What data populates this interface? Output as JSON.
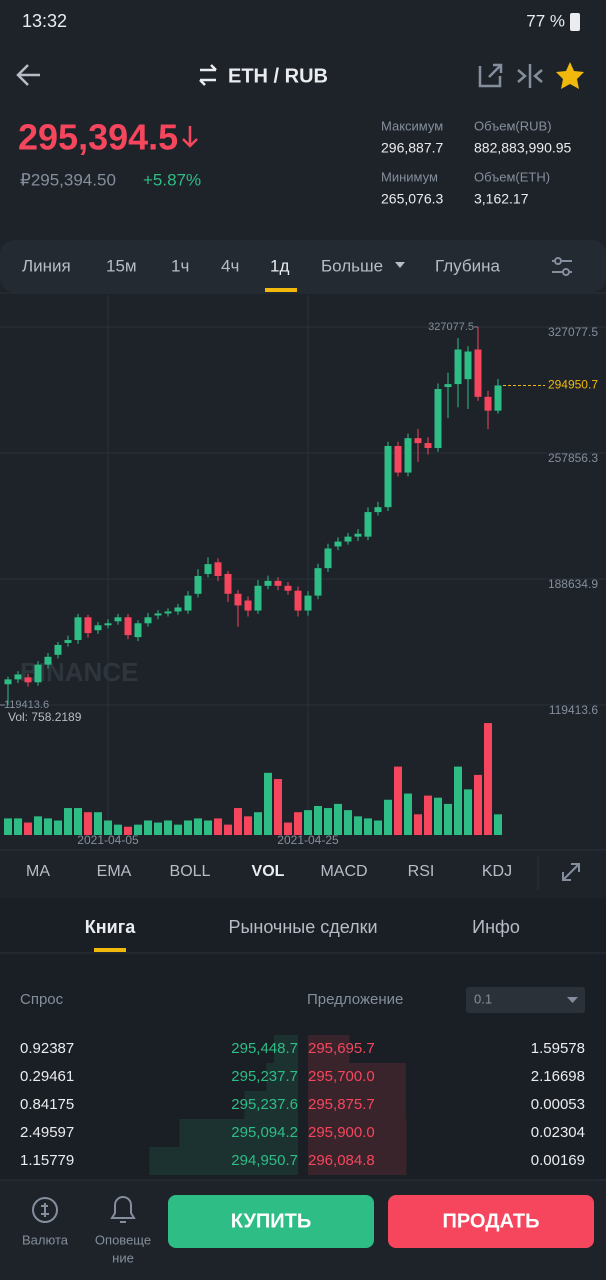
{
  "status_bar": {
    "time": "13:32",
    "battery": "77 %"
  },
  "header": {
    "pair": "ETH / RUB"
  },
  "ticker": {
    "price": "295,394.5",
    "price_rub": "₽295,394.50",
    "change": "+5.87%",
    "high_label": "Максимум",
    "high": "296,887.7",
    "low_label": "Минимум",
    "low": "265,076.3",
    "vol_rub_label": "Объем(RUB)",
    "vol_rub": "882,883,990.95",
    "vol_eth_label": "Объем(ETH)",
    "vol_eth": "3,162.17"
  },
  "timeframes": {
    "items": [
      "Линия",
      "15м",
      "1ч",
      "4ч",
      "1д",
      "Больше",
      "Глубина"
    ],
    "active": 4
  },
  "chart_data": {
    "type": "candlestick",
    "up_color": "#2ebd85",
    "down_color": "#f6465d",
    "grid": true,
    "categories": [
      null,
      null,
      null,
      null,
      null,
      null,
      null,
      null,
      null,
      null,
      "2021-04-05",
      null,
      null,
      null,
      null,
      null,
      null,
      null,
      null,
      null,
      null,
      null,
      null,
      null,
      null,
      null,
      null,
      null,
      null,
      null,
      "2021-04-25",
      null,
      null,
      null,
      null,
      null,
      null,
      null,
      null,
      null,
      null,
      null,
      null,
      null,
      null,
      null,
      null,
      null,
      null,
      null
    ],
    "open": [
      130800,
      133500,
      134600,
      131900,
      141600,
      147000,
      153500,
      155100,
      167600,
      160500,
      163200,
      165400,
      167600,
      156700,
      164300,
      168600,
      169700,
      170800,
      171300,
      180500,
      191400,
      197800,
      191400,
      180500,
      176800,
      171300,
      184900,
      187600,
      184900,
      182200,
      171300,
      179500,
      194600,
      206500,
      209200,
      211900,
      211900,
      225400,
      228100,
      261700,
      247100,
      266000,
      263300,
      260600,
      294100,
      295700,
      298400,
      314700,
      288700,
      281100
    ],
    "high": [
      135000,
      138000,
      136500,
      143500,
      148000,
      154000,
      157500,
      169500,
      169000,
      165000,
      166500,
      169500,
      169500,
      166000,
      170000,
      171500,
      172500,
      175000,
      182000,
      194000,
      200500,
      200000,
      193000,
      182500,
      179000,
      188000,
      190500,
      189500,
      187000,
      184500,
      182000,
      197000,
      208000,
      211500,
      214000,
      216000,
      228000,
      231000,
      264000,
      264000,
      268500,
      271000,
      266500,
      296000,
      302000,
      321000,
      316500,
      327077.5,
      292000,
      298500
    ],
    "low": [
      119413.6,
      131500,
      129500,
      130000,
      139500,
      145000,
      151500,
      153000,
      156500,
      158500,
      161500,
      163500,
      155500,
      154500,
      162500,
      166500,
      168000,
      169000,
      169500,
      178500,
      189500,
      187500,
      176000,
      162500,
      168000,
      169500,
      183000,
      182500,
      180000,
      168000,
      168500,
      177500,
      192500,
      204500,
      207500,
      209500,
      210000,
      223500,
      226000,
      245000,
      245000,
      253000,
      257000,
      258500,
      277000,
      283000,
      282000,
      286500,
      271000,
      279500
    ],
    "close": [
      133500,
      136200,
      131900,
      141600,
      145900,
      152400,
      155100,
      167600,
      158900,
      163200,
      164300,
      167600,
      157800,
      164300,
      167600,
      169700,
      170800,
      173000,
      179500,
      190300,
      196800,
      190300,
      180500,
      174100,
      171300,
      184900,
      187600,
      184900,
      182200,
      171300,
      179500,
      194600,
      205400,
      209200,
      211900,
      213500,
      225400,
      228100,
      261700,
      247100,
      266000,
      263300,
      260600,
      293000,
      295700,
      314700,
      313600,
      288700,
      281100,
      294950.7
    ],
    "volume": [
      608,
      608,
      456,
      684,
      608,
      532,
      988,
      988,
      836,
      836,
      532,
      380,
      304,
      380,
      532,
      456,
      532,
      380,
      532,
      608,
      532,
      608,
      380,
      988,
      684,
      836,
      2280,
      2052,
      456,
      836,
      912,
      1064,
      988,
      1140,
      912,
      684,
      608,
      532,
      1292,
      2508,
      1520,
      760,
      1444,
      1368,
      1140,
      2508,
      1672,
      2204,
      4104,
      758.2189
    ],
    "ylim": [
      115570,
      344640
    ],
    "yticks": [
      119413.6,
      188634.9,
      257856.3,
      327077.5
    ],
    "volume_ylim": [
      0,
      4400
    ],
    "high_marker": 327077.5,
    "low_marker": 119413.6,
    "last_price": 294950.7,
    "last_price_color": "#f0b90b",
    "volume_label": "Vol: 758.2189",
    "watermark": "BINANCE"
  },
  "indicators": {
    "items": [
      "MA",
      "EMA",
      "BOLL",
      "VOL",
      "MACD",
      "RSI",
      "KDJ"
    ],
    "active": 3
  },
  "book_tabs": {
    "items": [
      "Книга",
      "Рыночные сделки",
      "Инфо"
    ],
    "active": 0
  },
  "order_book": {
    "bid_label": "Спрос",
    "ask_label": "Предложение",
    "step": "0.1",
    "rows": [
      [
        0.92387,
        "295,448.7",
        "295,695.7",
        1.59578
      ],
      [
        0.29461,
        "295,237.7",
        "295,700.0",
        2.16698
      ],
      [
        0.84175,
        "295,237.6",
        "295,875.7",
        0.00053
      ],
      [
        2.49597,
        "295,094.2",
        "295,900.0",
        0.02304
      ],
      [
        1.15779,
        "294,950.7",
        "296,084.8",
        0.00169
      ]
    ]
  },
  "bottom_bar": {
    "currency": "Валюта",
    "alerts": [
      "Оповеще",
      "ние"
    ],
    "buy": "КУПИТЬ",
    "sell": "ПРОДАТЬ"
  }
}
